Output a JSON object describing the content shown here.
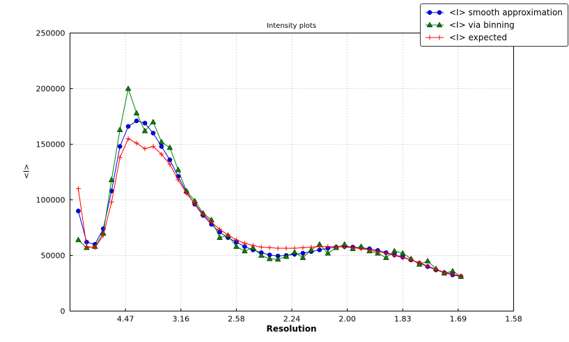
{
  "chart_data": {
    "type": "line",
    "title": "Intensity plots",
    "xlabel": "Resolution",
    "ylabel": "<I>",
    "grid": true,
    "legend_position": "top-right",
    "x_axis": {
      "range": [
        0,
        0.4
      ],
      "tick_values": [
        0.05,
        0.1,
        0.15,
        0.2,
        0.25,
        0.3,
        0.35,
        0.4
      ],
      "tick_labels": [
        "4.47",
        "3.16",
        "2.58",
        "2.24",
        "2.00",
        "1.83",
        "1.69",
        "1.58"
      ]
    },
    "y_axis": {
      "range": [
        0,
        250000
      ],
      "tick_values": [
        0,
        50000,
        100000,
        150000,
        200000,
        250000
      ],
      "tick_labels": [
        "0",
        "50000",
        "100000",
        "150000",
        "200000",
        "250000"
      ]
    },
    "x": [
      0.0075,
      0.015,
      0.0225,
      0.03,
      0.0375,
      0.045,
      0.0525,
      0.06,
      0.0675,
      0.075,
      0.0825,
      0.09,
      0.0975,
      0.105,
      0.1125,
      0.12,
      0.1275,
      0.135,
      0.1425,
      0.15,
      0.1575,
      0.165,
      0.1725,
      0.18,
      0.1875,
      0.195,
      0.2025,
      0.21,
      0.2175,
      0.225,
      0.2325,
      0.24,
      0.2475,
      0.255,
      0.2625,
      0.27,
      0.2775,
      0.285,
      0.2925,
      0.3,
      0.3075,
      0.315,
      0.3225,
      0.33,
      0.3375,
      0.345,
      0.3525
    ],
    "series": [
      {
        "name": "<I> smooth approximation",
        "color": "#0000ff",
        "marker": "circle",
        "values": [
          90000,
          62000,
          60000,
          74000,
          108000,
          148000,
          166000,
          171000,
          169000,
          160000,
          148000,
          136000,
          121000,
          107000,
          96000,
          86000,
          78000,
          71000,
          66000,
          62000,
          58000,
          55000,
          52500,
          50500,
          49500,
          50000,
          51000,
          52000,
          53500,
          55000,
          56500,
          57500,
          58000,
          57500,
          57000,
          56000,
          54500,
          52500,
          50500,
          48500,
          46000,
          43000,
          40000,
          37000,
          34500,
          32500,
          31000
        ]
      },
      {
        "name": "<I> via binning",
        "color": "#008000",
        "marker": "triangle",
        "values": [
          64000,
          57000,
          58000,
          70000,
          118000,
          163000,
          200000,
          178000,
          162000,
          170000,
          152000,
          147000,
          127000,
          108000,
          99000,
          88000,
          82000,
          66000,
          68000,
          58000,
          54000,
          57000,
          50000,
          47000,
          46500,
          49000,
          53000,
          48000,
          55000,
          60000,
          52000,
          57000,
          60000,
          56000,
          58000,
          54000,
          52000,
          48000,
          54000,
          52000,
          47000,
          42000,
          45000,
          38000,
          34000,
          36000,
          31000
        ]
      },
      {
        "name": "<I> expected",
        "color": "#ff0000",
        "marker": "plus",
        "values": [
          110000,
          58000,
          57000,
          68000,
          98000,
          138000,
          155000,
          151000,
          146000,
          148000,
          141000,
          132000,
          118000,
          106000,
          96500,
          87000,
          80000,
          73500,
          68500,
          64000,
          61000,
          59000,
          57500,
          57000,
          56500,
          56500,
          56500,
          57000,
          57500,
          58000,
          58000,
          58000,
          57500,
          57000,
          56000,
          55000,
          53500,
          52000,
          50000,
          48000,
          46000,
          43500,
          40500,
          37500,
          35000,
          33000,
          31500
        ]
      }
    ]
  }
}
